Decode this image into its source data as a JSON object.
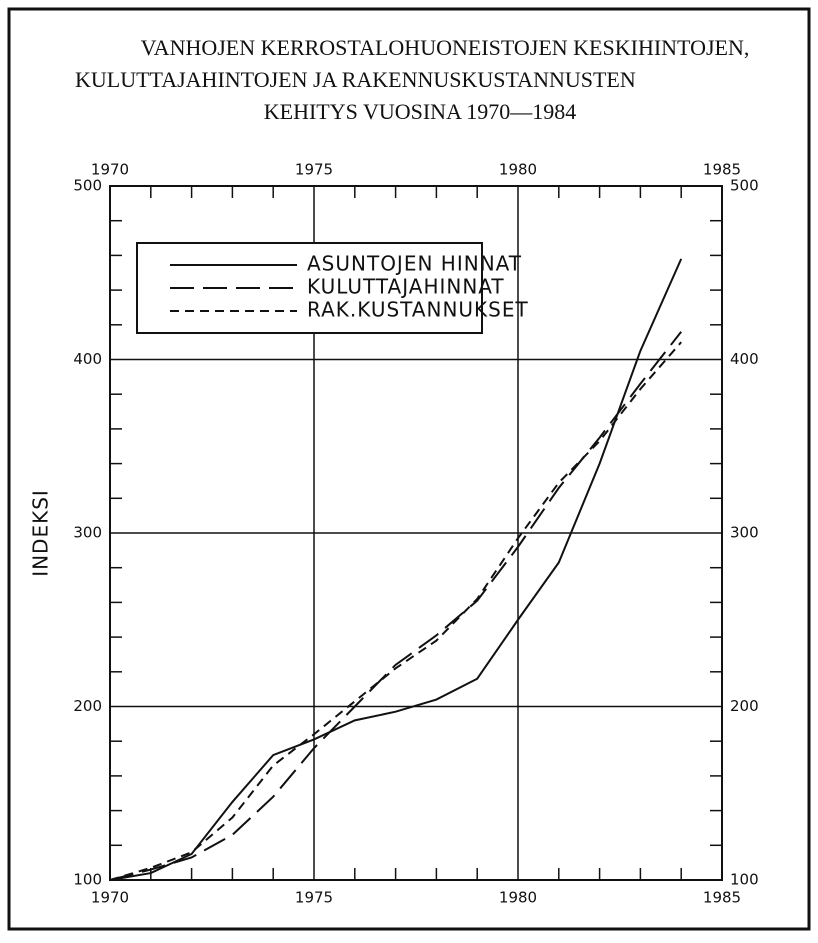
{
  "chart_data": {
    "type": "line",
    "title": [
      "VANHOJEN KERROSTALOHUONEISTOJEN KESKIHINTOJEN,",
      "KULUTTAJAHINTOJEN JA RAKENNUSKUSTANNUSTEN",
      "KEHITYS VUOSINA 1970—1984"
    ],
    "y_label": "INDEKSI",
    "x": [
      1970,
      1971,
      1972,
      1973,
      1974,
      1975,
      1976,
      1977,
      1978,
      1979,
      1980,
      1981,
      1982,
      1983,
      1984
    ],
    "series": [
      {
        "name": "ASUNTOJEN HINNAT",
        "color": "#111111",
        "dash": "solid",
        "values": [
          100,
          104,
          115,
          145,
          172,
          181,
          192,
          197,
          204,
          216,
          250,
          283,
          340,
          405,
          458
        ]
      },
      {
        "name": "KULUTTAJAHINNAT",
        "color": "#111111",
        "dash": "long",
        "values": [
          100,
          106,
          113,
          126,
          148,
          176,
          200,
          224,
          241,
          261,
          292,
          326,
          355,
          386,
          416
        ]
      },
      {
        "name": "RAK.KUSTANNUKSET",
        "color": "#111111",
        "dash": "short",
        "values": [
          100,
          107,
          116,
          136,
          166,
          184,
          203,
          222,
          238,
          262,
          297,
          329,
          353,
          383,
          410
        ]
      }
    ],
    "xlim": [
      1970,
      1985
    ],
    "xticks": [
      1970,
      1975,
      1980,
      1985
    ],
    "xticks_minor": [
      1971,
      1972,
      1973,
      1974,
      1976,
      1977,
      1978,
      1979,
      1981,
      1982,
      1983,
      1984
    ],
    "ylim": [
      100,
      500
    ],
    "yticks": [
      100,
      200,
      300,
      400,
      500
    ],
    "yticks_minor": [
      120,
      140,
      160,
      180,
      220,
      240,
      260,
      280,
      320,
      340,
      360,
      380,
      420,
      440,
      460,
      480
    ],
    "grid": true,
    "legend": "upper left"
  }
}
